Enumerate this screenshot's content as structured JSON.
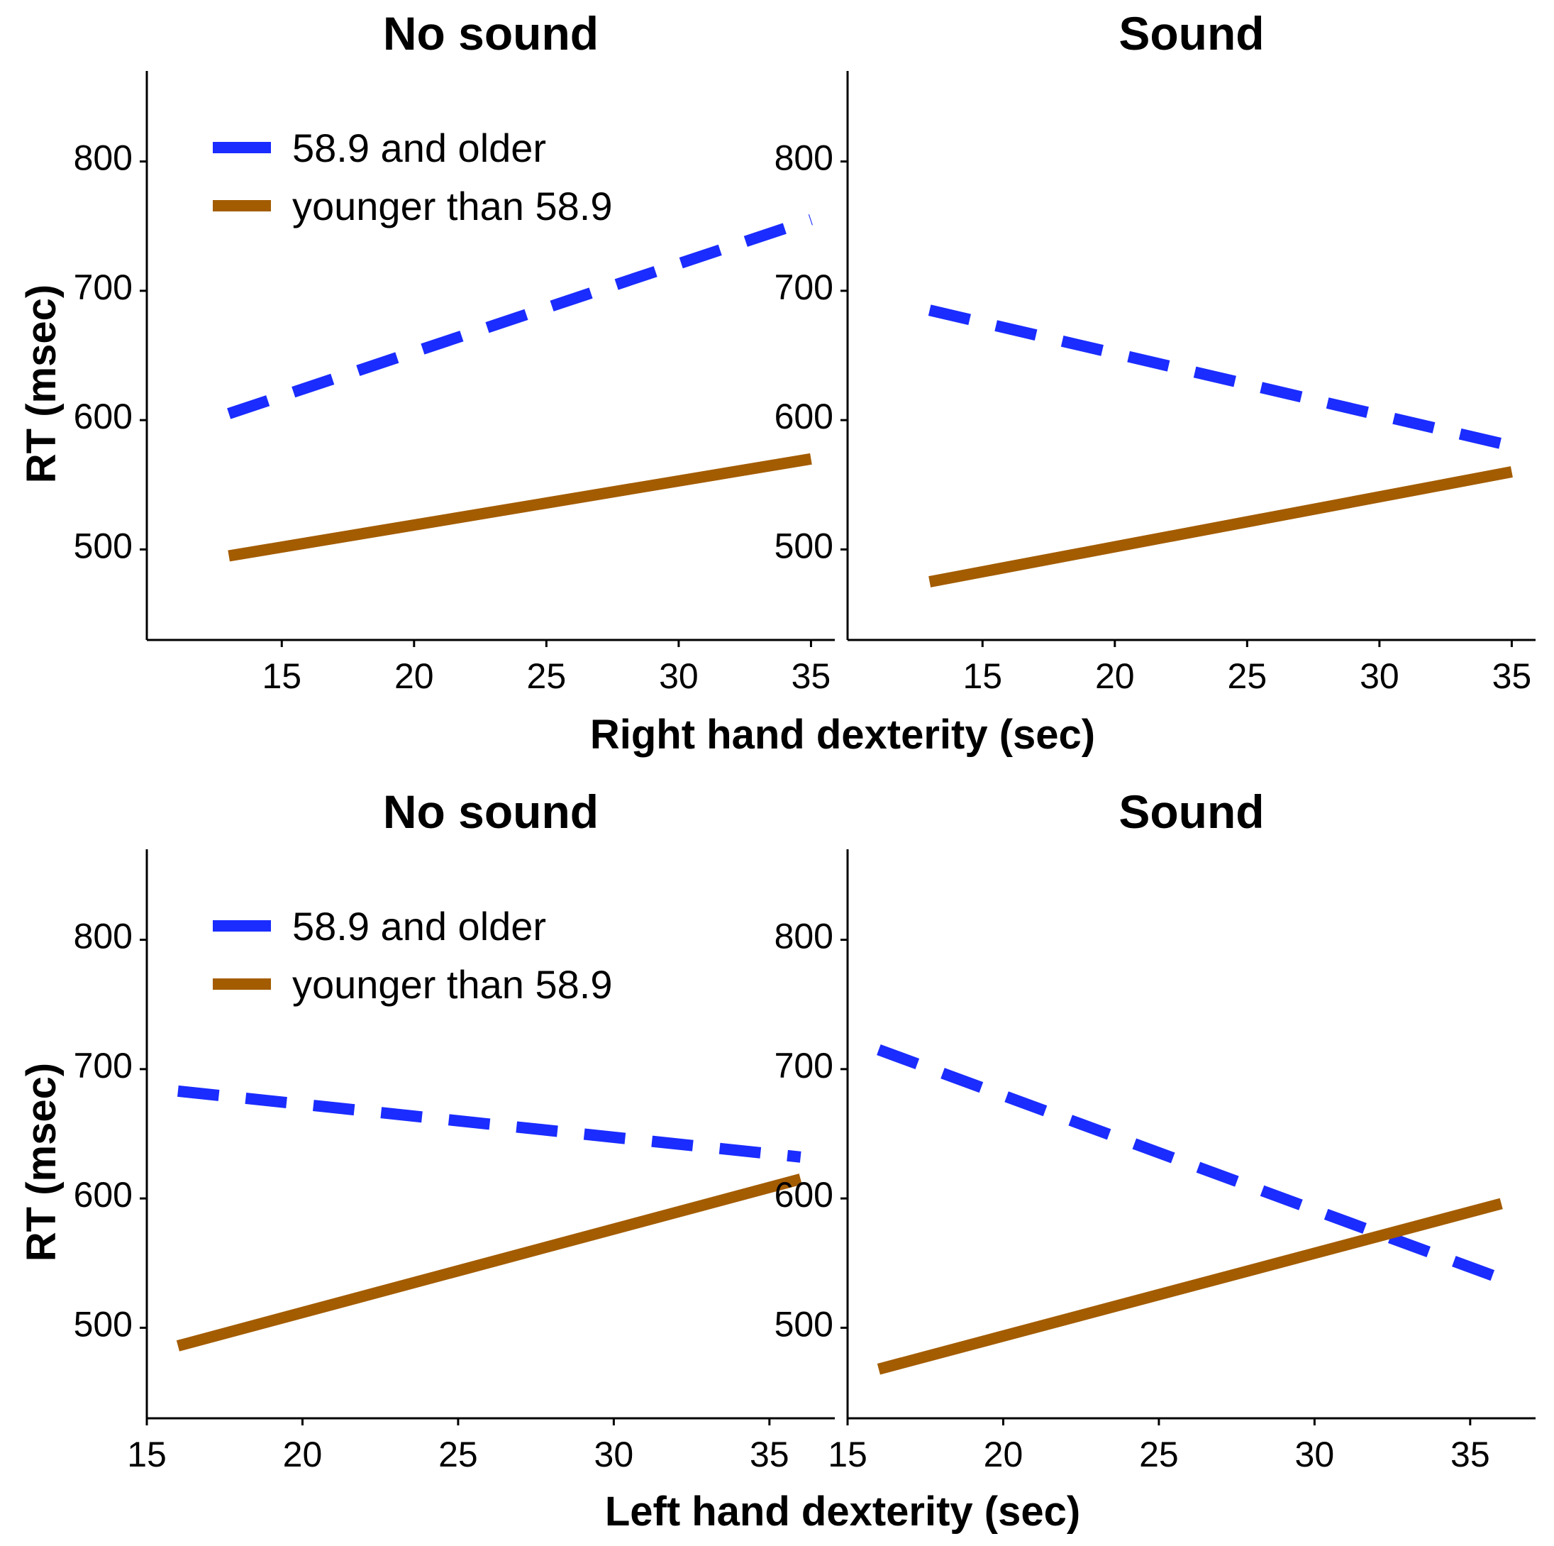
{
  "chart_data": [
    {
      "type": "line",
      "title": "No sound",
      "xlabel": "Right hand dexterity (sec)",
      "ylabel": "RT (msec)",
      "xlim": [
        9.9,
        35.9
      ],
      "ylim": [
        430,
        870
      ],
      "xticks": [
        15,
        20,
        25,
        30,
        35
      ],
      "yticks": [
        500,
        600,
        700,
        800
      ],
      "legend": "top-left",
      "series": [
        {
          "name": "58.9 and older",
          "color": "#1a2cff",
          "dash": "dashed",
          "x": [
            13,
            35
          ],
          "y": [
            605,
            755
          ]
        },
        {
          "name": "younger than 58.9",
          "color": "#a35c00",
          "dash": "solid",
          "x": [
            13,
            35
          ],
          "y": [
            495,
            570
          ]
        }
      ]
    },
    {
      "type": "line",
      "title": "Sound",
      "xlabel": "Right hand dexterity (sec)",
      "ylabel": "",
      "xlim": [
        9.9,
        35.9
      ],
      "ylim": [
        430,
        870
      ],
      "xticks": [
        15,
        20,
        25,
        30,
        35
      ],
      "yticks": [
        500,
        600,
        700,
        800
      ],
      "legend": "",
      "series": [
        {
          "name": "58.9 and older",
          "color": "#1a2cff",
          "dash": "dashed",
          "x": [
            13,
            35
          ],
          "y": [
            685,
            580
          ]
        },
        {
          "name": "younger than 58.9",
          "color": "#a35c00",
          "dash": "solid",
          "x": [
            13,
            35
          ],
          "y": [
            475,
            560
          ]
        }
      ]
    },
    {
      "type": "line",
      "title": "No sound",
      "xlabel": "Left hand dexterity (sec)",
      "ylabel": "RT (msec)",
      "xlim": [
        15,
        37.1
      ],
      "ylim": [
        430,
        870
      ],
      "xticks": [
        15,
        20,
        25,
        30,
        35
      ],
      "yticks": [
        500,
        600,
        700,
        800
      ],
      "legend": "top-left",
      "series": [
        {
          "name": "58.9 and older",
          "color": "#1a2cff",
          "dash": "dashed",
          "x": [
            16,
            36
          ],
          "y": [
            683,
            632
          ]
        },
        {
          "name": "younger than 58.9",
          "color": "#a35c00",
          "dash": "solid",
          "x": [
            16,
            36
          ],
          "y": [
            486,
            615
          ]
        }
      ]
    },
    {
      "type": "line",
      "title": "Sound",
      "xlabel": "Left hand dexterity (sec)",
      "ylabel": "",
      "xlim": [
        15,
        37.1
      ],
      "ylim": [
        430,
        870
      ],
      "xticks": [
        15,
        20,
        25,
        30,
        35
      ],
      "yticks": [
        500,
        600,
        700,
        800
      ],
      "legend": "",
      "series": [
        {
          "name": "58.9 and older",
          "color": "#1a2cff",
          "dash": "dashed",
          "x": [
            16,
            36
          ],
          "y": [
            715,
            538
          ]
        },
        {
          "name": "younger than 58.9",
          "color": "#a35c00",
          "dash": "solid",
          "x": [
            16,
            36
          ],
          "y": [
            468,
            596
          ]
        }
      ]
    }
  ],
  "shared_xlabels": [
    "Right hand dexterity (sec)",
    "Left hand dexterity (sec)"
  ]
}
